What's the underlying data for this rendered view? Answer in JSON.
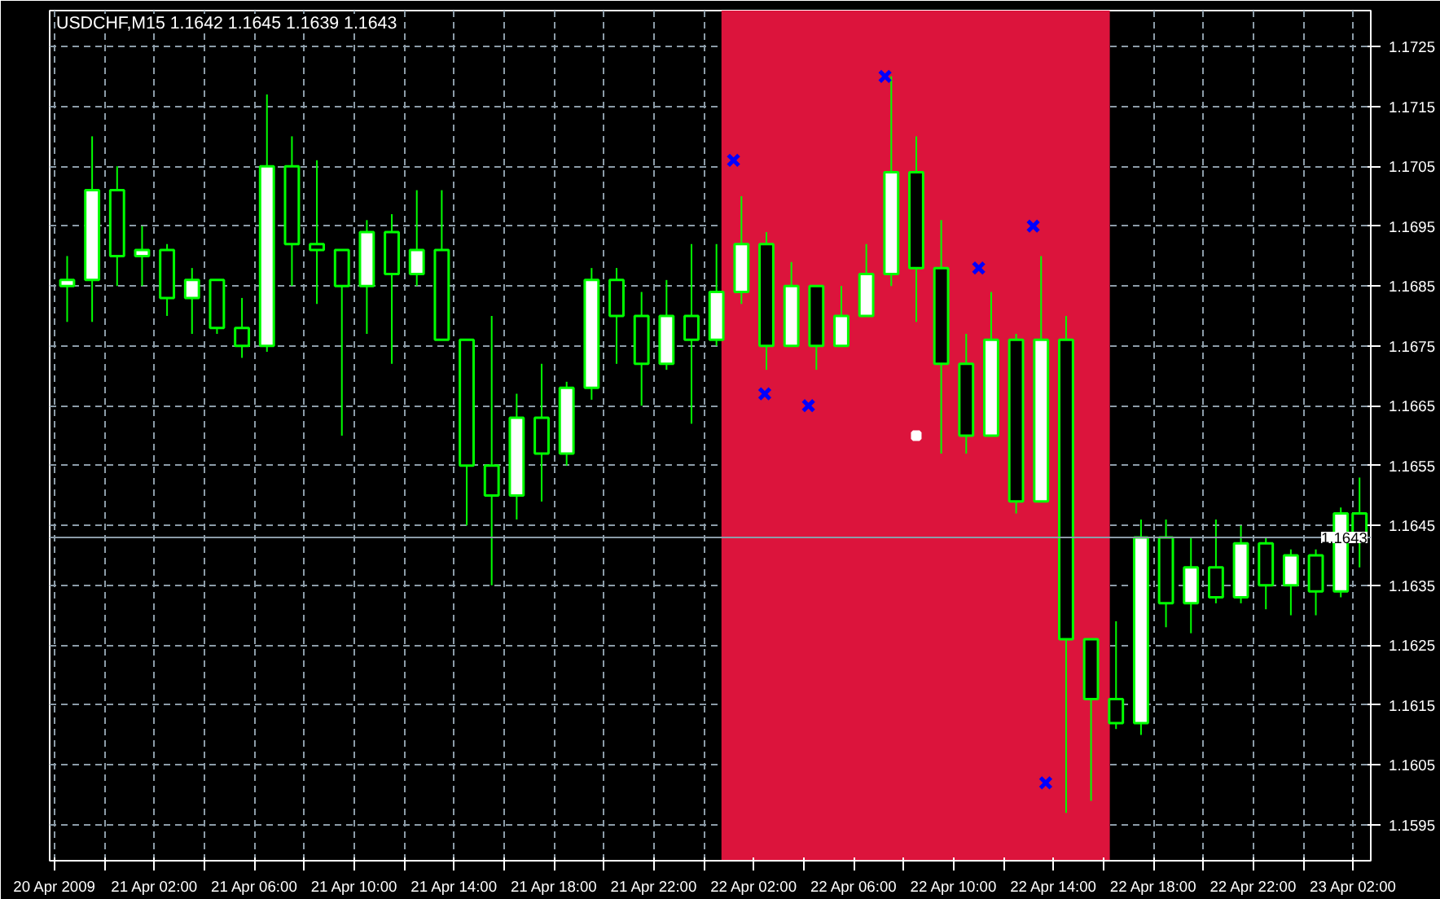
{
  "chart_data": {
    "type": "candlestick",
    "title": "USDCHF,M15  1.1642 1.1645 1.1639 1.1643",
    "x": [
      "2009-04-20T22:30",
      "2009-04-20T23:30",
      "2009-04-21T00:30",
      "2009-04-21T01:30",
      "2009-04-21T02:30",
      "2009-04-21T03:30",
      "2009-04-21T04:30",
      "2009-04-21T05:30",
      "2009-04-21T06:30",
      "2009-04-21T07:30",
      "2009-04-21T08:30",
      "2009-04-21T09:30",
      "2009-04-21T10:30",
      "2009-04-21T11:30",
      "2009-04-21T12:30",
      "2009-04-21T13:30",
      "2009-04-21T14:30",
      "2009-04-21T15:30",
      "2009-04-21T16:30",
      "2009-04-21T17:30",
      "2009-04-21T18:30",
      "2009-04-21T19:30",
      "2009-04-21T20:30",
      "2009-04-21T21:30",
      "2009-04-21T22:30",
      "2009-04-21T23:30",
      "2009-04-22T00:30",
      "2009-04-22T01:30",
      "2009-04-22T02:30",
      "2009-04-22T03:30",
      "2009-04-22T04:30",
      "2009-04-22T05:30",
      "2009-04-22T06:30",
      "2009-04-22T07:30",
      "2009-04-22T08:30",
      "2009-04-22T09:30",
      "2009-04-22T10:30",
      "2009-04-22T11:30",
      "2009-04-22T12:30",
      "2009-04-22T13:30",
      "2009-04-22T14:30",
      "2009-04-22T15:30",
      "2009-04-22T16:30",
      "2009-04-22T17:30",
      "2009-04-22T18:30",
      "2009-04-22T19:30",
      "2009-04-22T20:30",
      "2009-04-22T21:30",
      "2009-04-22T22:30",
      "2009-04-22T23:30",
      "2009-04-23T00:30",
      "2009-04-23T01:30",
      "2009-04-23T02:15"
    ],
    "ohlc": [
      [
        1.1685,
        1.169,
        1.1679,
        1.1686
      ],
      [
        1.1686,
        1.171,
        1.1679,
        1.1701
      ],
      [
        1.1701,
        1.1705,
        1.1685,
        1.169
      ],
      [
        1.169,
        1.1695,
        1.1685,
        1.1691
      ],
      [
        1.1691,
        1.1692,
        1.168,
        1.1683
      ],
      [
        1.1683,
        1.1688,
        1.1677,
        1.1686
      ],
      [
        1.1686,
        1.1686,
        1.1677,
        1.1678
      ],
      [
        1.1678,
        1.1683,
        1.1673,
        1.1675
      ],
      [
        1.1675,
        1.1717,
        1.1674,
        1.1705
      ],
      [
        1.1705,
        1.171,
        1.1685,
        1.1692
      ],
      [
        1.1692,
        1.1706,
        1.1682,
        1.1691
      ],
      [
        1.1691,
        1.1691,
        1.166,
        1.1685
      ],
      [
        1.1685,
        1.1696,
        1.1677,
        1.1694
      ],
      [
        1.1694,
        1.1697,
        1.1672,
        1.1687
      ],
      [
        1.1687,
        1.1701,
        1.1685,
        1.1691
      ],
      [
        1.1691,
        1.1701,
        1.1676,
        1.1676
      ],
      [
        1.1676,
        1.1676,
        1.1645,
        1.1655
      ],
      [
        1.1655,
        1.168,
        1.1635,
        1.165
      ],
      [
        1.165,
        1.1667,
        1.1646,
        1.1663
      ],
      [
        1.1663,
        1.1672,
        1.1649,
        1.1657
      ],
      [
        1.1657,
        1.1669,
        1.1655,
        1.1668
      ],
      [
        1.1668,
        1.1688,
        1.1666,
        1.1686
      ],
      [
        1.1686,
        1.1688,
        1.1672,
        1.168
      ],
      [
        1.168,
        1.1684,
        1.1665,
        1.1672
      ],
      [
        1.1672,
        1.1686,
        1.1671,
        1.168
      ],
      [
        1.168,
        1.1692,
        1.1662,
        1.1676
      ],
      [
        1.1676,
        1.1692,
        1.1675,
        1.1684
      ],
      [
        1.1684,
        1.17,
        1.1682,
        1.1692
      ],
      [
        1.1692,
        1.1694,
        1.1671,
        1.1675
      ],
      [
        1.1675,
        1.1689,
        1.1675,
        1.1685
      ],
      [
        1.1685,
        1.1685,
        1.1671,
        1.1675
      ],
      [
        1.1675,
        1.1685,
        1.1675,
        1.168
      ],
      [
        1.168,
        1.1692,
        1.168,
        1.1687
      ],
      [
        1.1687,
        1.172,
        1.1685,
        1.1704
      ],
      [
        1.1704,
        1.171,
        1.1679,
        1.1688
      ],
      [
        1.1688,
        1.1696,
        1.1657,
        1.1672
      ],
      [
        1.1672,
        1.1677,
        1.1657,
        1.166
      ],
      [
        1.166,
        1.1684,
        1.166,
        1.1676
      ],
      [
        1.1676,
        1.1677,
        1.1647,
        1.1649
      ],
      [
        1.1649,
        1.169,
        1.1649,
        1.1676
      ],
      [
        1.1676,
        1.168,
        1.1597,
        1.1626
      ],
      [
        1.1626,
        1.1626,
        1.1599,
        1.1616
      ],
      [
        1.1616,
        1.1629,
        1.1611,
        1.1612
      ],
      [
        1.1612,
        1.1646,
        1.161,
        1.1643
      ],
      [
        1.1643,
        1.1646,
        1.1628,
        1.1632
      ],
      [
        1.1632,
        1.1643,
        1.1627,
        1.1638
      ],
      [
        1.1638,
        1.1646,
        1.1632,
        1.1633
      ],
      [
        1.1633,
        1.1645,
        1.1632,
        1.1642
      ],
      [
        1.1642,
        1.1643,
        1.1631,
        1.1635
      ],
      [
        1.1635,
        1.1641,
        1.163,
        1.164
      ],
      [
        1.164,
        1.1641,
        1.163,
        1.1634
      ],
      [
        1.1634,
        1.1648,
        1.1633,
        1.1647
      ],
      [
        1.1647,
        1.1653,
        1.1638,
        1.1643
      ]
    ],
    "color": "#00ff00",
    "series": [
      {
        "type": "scatter",
        "marker": "cross",
        "color": "#0000ff",
        "x": [
          "2009-04-22T01:11",
          "2009-04-22T02:26",
          "2009-04-22T04:11",
          "2009-04-22T07:15",
          "2009-04-22T11:00",
          "2009-04-22T13:11",
          "2009-04-22T13:41"
        ],
        "values": [
          1.1706,
          1.1667,
          1.1665,
          1.172,
          1.1688,
          1.1695,
          1.1602
        ]
      },
      {
        "type": "scatter",
        "marker": "square",
        "color": "#ffffff",
        "x": [
          "2009-04-22T08:30"
        ],
        "values": [
          1.166
        ]
      }
    ],
    "bands": [
      {
        "axis": "x",
        "from": "2009-04-22T00:42",
        "to": "2009-04-22T16:15",
        "color": "#dc143c"
      }
    ],
    "ref_lines": [
      {
        "axis": "y",
        "value": 1.1643,
        "label": "1.1643",
        "color": "#8c9ca8"
      }
    ],
    "xlim": [
      "2009-04-20T21:48",
      "2009-04-23T02:42"
    ],
    "ylim": [
      1.1589,
      1.1731
    ],
    "xticks": [
      {
        "value": "2009-04-20T22:00",
        "label": "20 Apr 2009"
      },
      {
        "value": "2009-04-21T00:00",
        "label": null
      },
      {
        "value": "2009-04-21T02:00",
        "label": "21 Apr 02:00"
      },
      {
        "value": "2009-04-21T04:00",
        "label": null
      },
      {
        "value": "2009-04-21T06:00",
        "label": "21 Apr 06:00"
      },
      {
        "value": "2009-04-21T08:00",
        "label": null
      },
      {
        "value": "2009-04-21T10:00",
        "label": "21 Apr 10:00"
      },
      {
        "value": "2009-04-21T12:00",
        "label": null
      },
      {
        "value": "2009-04-21T14:00",
        "label": "21 Apr 14:00"
      },
      {
        "value": "2009-04-21T16:00",
        "label": null
      },
      {
        "value": "2009-04-21T18:00",
        "label": "21 Apr 18:00"
      },
      {
        "value": "2009-04-21T20:00",
        "label": null
      },
      {
        "value": "2009-04-21T22:00",
        "label": "21 Apr 22:00"
      },
      {
        "value": "2009-04-22T00:00",
        "label": null
      },
      {
        "value": "2009-04-22T02:00",
        "label": "22 Apr 02:00"
      },
      {
        "value": "2009-04-22T04:00",
        "label": null
      },
      {
        "value": "2009-04-22T06:00",
        "label": "22 Apr 06:00"
      },
      {
        "value": "2009-04-22T08:00",
        "label": null
      },
      {
        "value": "2009-04-22T10:00",
        "label": "22 Apr 10:00"
      },
      {
        "value": "2009-04-22T12:00",
        "label": null
      },
      {
        "value": "2009-04-22T14:00",
        "label": "22 Apr 14:00"
      },
      {
        "value": "2009-04-22T16:00",
        "label": null
      },
      {
        "value": "2009-04-22T18:00",
        "label": "22 Apr 18:00"
      },
      {
        "value": "2009-04-22T20:00",
        "label": null
      },
      {
        "value": "2009-04-22T22:00",
        "label": "22 Apr 22:00"
      },
      {
        "value": "2009-04-23T00:00",
        "label": null
      },
      {
        "value": "2009-04-23T02:00",
        "label": "23 Apr 02:00"
      }
    ],
    "yticks": [
      1.1595,
      1.1605,
      1.1615,
      1.1625,
      1.1635,
      1.1645,
      1.1655,
      1.1665,
      1.1675,
      1.1685,
      1.1695,
      1.1705,
      1.1715,
      1.1725
    ],
    "grid": true,
    "line_style": "dashed"
  }
}
